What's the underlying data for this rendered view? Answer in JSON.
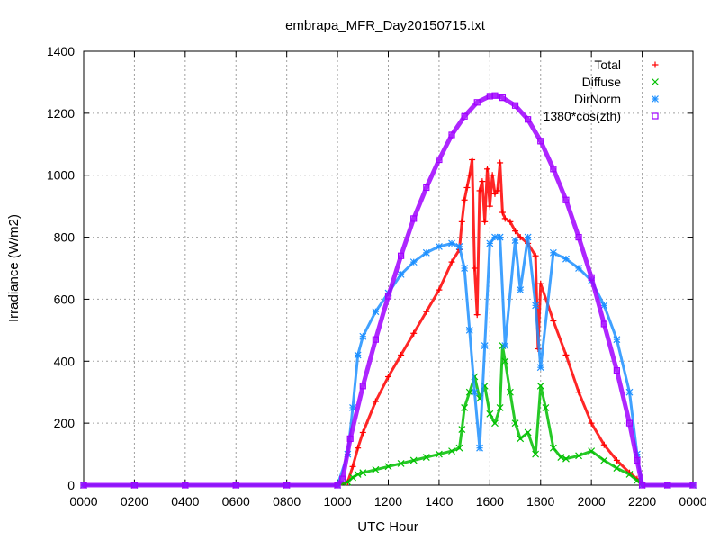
{
  "chart_data": {
    "type": "scatter",
    "title": "embrapa_MFR_Day20150715.txt",
    "xlabel": "UTC Hour",
    "ylabel": "Irradiance (W/m2)",
    "xlim": [
      0,
      2400
    ],
    "ylim": [
      0,
      1400
    ],
    "x_ticks": [
      "0000",
      "0200",
      "0400",
      "0600",
      "0800",
      "1000",
      "1200",
      "1400",
      "1600",
      "1800",
      "2000",
      "2200",
      "0000"
    ],
    "y_ticks": [
      "0",
      "200",
      "400",
      "600",
      "800",
      "1000",
      "1200",
      "1400"
    ],
    "grid": true,
    "legend_position": "top-right",
    "series": [
      {
        "name": "Total",
        "color": "#ff0000",
        "marker": "plus",
        "points": [
          [
            0,
            0
          ],
          [
            200,
            0
          ],
          [
            400,
            0
          ],
          [
            600,
            0
          ],
          [
            800,
            0
          ],
          [
            1000,
            0
          ],
          [
            1040,
            10
          ],
          [
            1060,
            60
          ],
          [
            1080,
            120
          ],
          [
            1100,
            170
          ],
          [
            1150,
            270
          ],
          [
            1200,
            350
          ],
          [
            1250,
            420
          ],
          [
            1300,
            490
          ],
          [
            1350,
            560
          ],
          [
            1400,
            630
          ],
          [
            1450,
            720
          ],
          [
            1480,
            760
          ],
          [
            1490,
            850
          ],
          [
            1500,
            920
          ],
          [
            1510,
            960
          ],
          [
            1520,
            1000
          ],
          [
            1530,
            1050
          ],
          [
            1540,
            700
          ],
          [
            1550,
            550
          ],
          [
            1560,
            950
          ],
          [
            1570,
            980
          ],
          [
            1580,
            850
          ],
          [
            1590,
            1020
          ],
          [
            1600,
            900
          ],
          [
            1610,
            1000
          ],
          [
            1620,
            940
          ],
          [
            1630,
            950
          ],
          [
            1640,
            1040
          ],
          [
            1650,
            880
          ],
          [
            1660,
            860
          ],
          [
            1680,
            850
          ],
          [
            1700,
            820
          ],
          [
            1720,
            800
          ],
          [
            1750,
            780
          ],
          [
            1780,
            740
          ],
          [
            1790,
            440
          ],
          [
            1800,
            650
          ],
          [
            1850,
            530
          ],
          [
            1900,
            420
          ],
          [
            1950,
            300
          ],
          [
            2000,
            200
          ],
          [
            2050,
            130
          ],
          [
            2100,
            80
          ],
          [
            2150,
            40
          ],
          [
            2180,
            20
          ],
          [
            2200,
            0
          ],
          [
            2300,
            0
          ],
          [
            2400,
            0
          ]
        ]
      },
      {
        "name": "Diffuse",
        "color": "#00c000",
        "marker": "cross",
        "points": [
          [
            0,
            0
          ],
          [
            200,
            0
          ],
          [
            400,
            0
          ],
          [
            600,
            0
          ],
          [
            800,
            0
          ],
          [
            1000,
            0
          ],
          [
            1040,
            10
          ],
          [
            1060,
            25
          ],
          [
            1080,
            35
          ],
          [
            1100,
            40
          ],
          [
            1150,
            50
          ],
          [
            1200,
            60
          ],
          [
            1250,
            70
          ],
          [
            1300,
            80
          ],
          [
            1350,
            90
          ],
          [
            1400,
            100
          ],
          [
            1450,
            110
          ],
          [
            1480,
            120
          ],
          [
            1490,
            180
          ],
          [
            1500,
            250
          ],
          [
            1520,
            300
          ],
          [
            1540,
            350
          ],
          [
            1560,
            280
          ],
          [
            1580,
            320
          ],
          [
            1600,
            230
          ],
          [
            1620,
            200
          ],
          [
            1640,
            250
          ],
          [
            1650,
            450
          ],
          [
            1660,
            400
          ],
          [
            1680,
            300
          ],
          [
            1700,
            200
          ],
          [
            1720,
            150
          ],
          [
            1750,
            170
          ],
          [
            1780,
            100
          ],
          [
            1800,
            320
          ],
          [
            1820,
            250
          ],
          [
            1850,
            120
          ],
          [
            1880,
            90
          ],
          [
            1900,
            85
          ],
          [
            1950,
            95
          ],
          [
            2000,
            110
          ],
          [
            2050,
            80
          ],
          [
            2100,
            55
          ],
          [
            2150,
            35
          ],
          [
            2180,
            15
          ],
          [
            2200,
            0
          ],
          [
            2300,
            0
          ],
          [
            2400,
            0
          ]
        ]
      },
      {
        "name": "DirNorm",
        "color": "#1e90ff",
        "marker": "star",
        "points": [
          [
            0,
            0
          ],
          [
            200,
            0
          ],
          [
            400,
            0
          ],
          [
            600,
            0
          ],
          [
            800,
            0
          ],
          [
            1000,
            0
          ],
          [
            1040,
            100
          ],
          [
            1060,
            250
          ],
          [
            1080,
            420
          ],
          [
            1100,
            480
          ],
          [
            1150,
            560
          ],
          [
            1200,
            620
          ],
          [
            1250,
            680
          ],
          [
            1300,
            720
          ],
          [
            1350,
            750
          ],
          [
            1400,
            770
          ],
          [
            1450,
            780
          ],
          [
            1480,
            770
          ],
          [
            1500,
            700
          ],
          [
            1520,
            500
          ],
          [
            1540,
            300
          ],
          [
            1560,
            120
          ],
          [
            1580,
            450
          ],
          [
            1600,
            780
          ],
          [
            1620,
            800
          ],
          [
            1640,
            800
          ],
          [
            1660,
            450
          ],
          [
            1700,
            790
          ],
          [
            1720,
            630
          ],
          [
            1750,
            800
          ],
          [
            1780,
            580
          ],
          [
            1800,
            380
          ],
          [
            1850,
            750
          ],
          [
            1900,
            730
          ],
          [
            1950,
            700
          ],
          [
            2000,
            660
          ],
          [
            2050,
            580
          ],
          [
            2100,
            470
          ],
          [
            2150,
            300
          ],
          [
            2180,
            100
          ],
          [
            2200,
            0
          ],
          [
            2300,
            0
          ],
          [
            2400,
            0
          ]
        ]
      },
      {
        "name": "1380*cos(zth)",
        "color": "#a000ff",
        "marker": "square",
        "points": [
          [
            0,
            0
          ],
          [
            200,
            0
          ],
          [
            400,
            0
          ],
          [
            600,
            0
          ],
          [
            800,
            0
          ],
          [
            1000,
            0
          ],
          [
            1020,
            20
          ],
          [
            1050,
            150
          ],
          [
            1100,
            320
          ],
          [
            1150,
            470
          ],
          [
            1200,
            610
          ],
          [
            1250,
            740
          ],
          [
            1300,
            860
          ],
          [
            1350,
            960
          ],
          [
            1400,
            1050
          ],
          [
            1450,
            1130
          ],
          [
            1500,
            1190
          ],
          [
            1550,
            1235
          ],
          [
            1600,
            1255
          ],
          [
            1620,
            1257
          ],
          [
            1650,
            1250
          ],
          [
            1700,
            1225
          ],
          [
            1750,
            1180
          ],
          [
            1800,
            1110
          ],
          [
            1850,
            1020
          ],
          [
            1900,
            920
          ],
          [
            1950,
            800
          ],
          [
            2000,
            670
          ],
          [
            2050,
            520
          ],
          [
            2100,
            370
          ],
          [
            2150,
            200
          ],
          [
            2180,
            80
          ],
          [
            2200,
            0
          ],
          [
            2300,
            0
          ],
          [
            2400,
            0
          ]
        ]
      }
    ]
  }
}
